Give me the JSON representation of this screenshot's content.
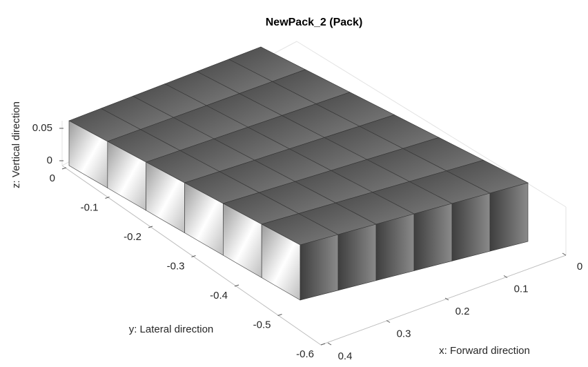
{
  "chart_data": {
    "type": "pack3d",
    "title": "NewPack_2 (Pack)",
    "xlabel": "x: Forward direction",
    "ylabel": "y: Lateral direction",
    "zlabel": "z: Vertical direction",
    "xlim": [
      0,
      0.4
    ],
    "ylim": [
      -0.6,
      0
    ],
    "zlim": [
      0,
      0.05
    ],
    "xticks": [
      0,
      0.1,
      0.2,
      0.3,
      0.4
    ],
    "yticks": [
      0,
      -0.1,
      -0.2,
      -0.3,
      -0.4,
      -0.5,
      -0.6
    ],
    "zticks": [
      0,
      0.05
    ],
    "color": "#5a5a5a"
  }
}
